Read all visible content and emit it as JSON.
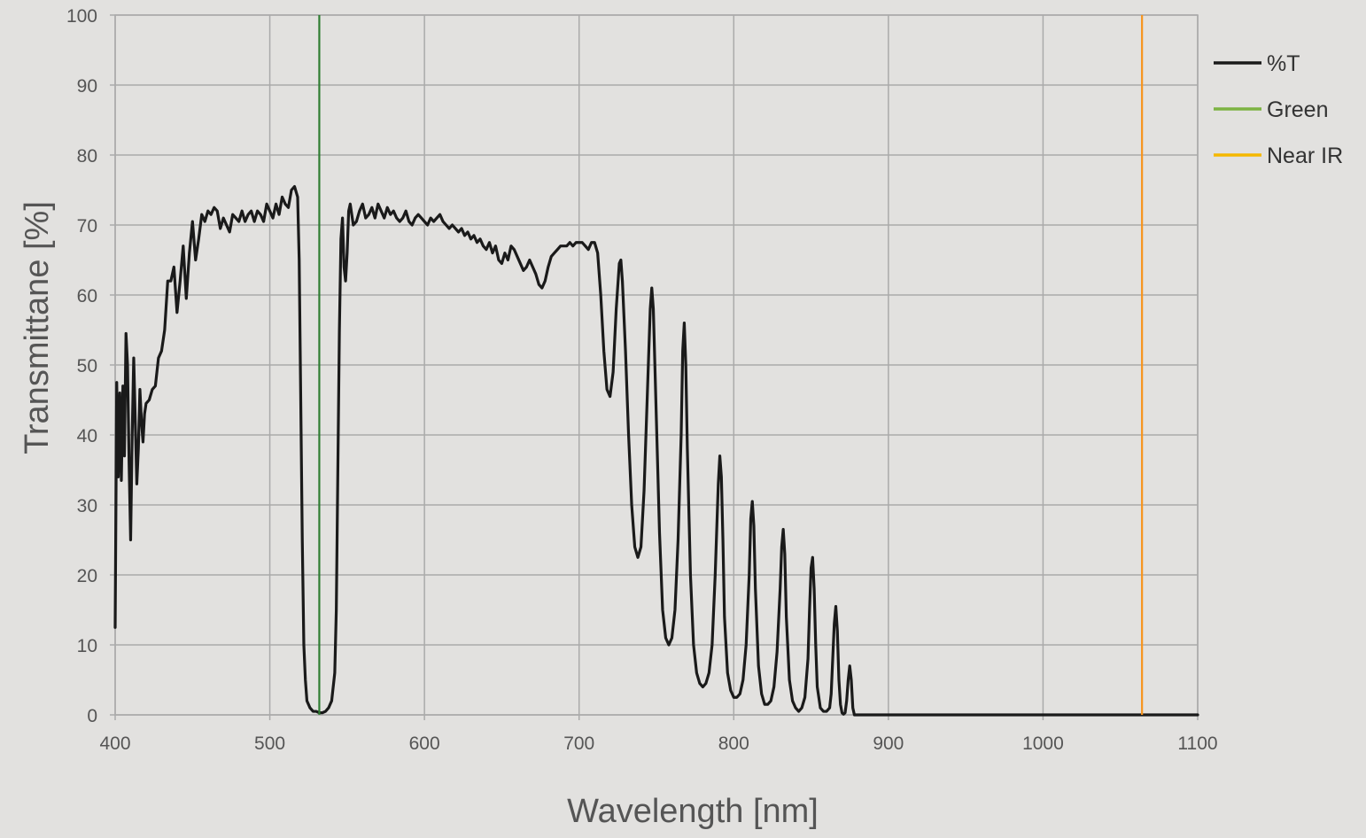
{
  "chart_data": {
    "type": "line",
    "xlabel": "Wavelength [nm]",
    "ylabel": "Transmittane [%]",
    "xlim": [
      400,
      1100
    ],
    "ylim": [
      0,
      100
    ],
    "xticks": [
      "400",
      "500",
      "600",
      "700",
      "800",
      "900",
      "1000",
      "1100"
    ],
    "yticks": [
      "0",
      "10",
      "20",
      "30",
      "40",
      "50",
      "60",
      "70",
      "80",
      "90",
      "100"
    ],
    "grid": true,
    "legend_position": "right",
    "legend": [
      "%T",
      "Green",
      "Near IR"
    ],
    "colors": {
      "transmittance": "#1a1a1a",
      "green_legend": "#7cb342",
      "green_line": "#2e7d32",
      "nir_legend": "#f5b800",
      "nir_line": "#f7941d",
      "grid": "#aaaaaa",
      "frame": "#aaaaaa",
      "background": "#e2e1df"
    },
    "series": [
      {
        "name": "%T",
        "points": [
          [
            400,
            12.5
          ],
          [
            401,
            47.5
          ],
          [
            402,
            34
          ],
          [
            403,
            46
          ],
          [
            404,
            33.5
          ],
          [
            405,
            47
          ],
          [
            406,
            37
          ],
          [
            407,
            54.5
          ],
          [
            408,
            50
          ],
          [
            409,
            36
          ],
          [
            410,
            25
          ],
          [
            411,
            40
          ],
          [
            412,
            51
          ],
          [
            413,
            42
          ],
          [
            414,
            33
          ],
          [
            415,
            38
          ],
          [
            416,
            46.5
          ],
          [
            417,
            42
          ],
          [
            418,
            39
          ],
          [
            419,
            43
          ],
          [
            420,
            44.5
          ],
          [
            422,
            45
          ],
          [
            424,
            46.5
          ],
          [
            426,
            47
          ],
          [
            428,
            51
          ],
          [
            430,
            52
          ],
          [
            432,
            55
          ],
          [
            434,
            62
          ],
          [
            436,
            62
          ],
          [
            438,
            64
          ],
          [
            440,
            57.5
          ],
          [
            442,
            62
          ],
          [
            444,
            67
          ],
          [
            446,
            59.5
          ],
          [
            448,
            66
          ],
          [
            450,
            70.5
          ],
          [
            452,
            65
          ],
          [
            454,
            68
          ],
          [
            456,
            71.5
          ],
          [
            458,
            70.5
          ],
          [
            460,
            72
          ],
          [
            462,
            71.5
          ],
          [
            464,
            72.5
          ],
          [
            466,
            72
          ],
          [
            468,
            69.5
          ],
          [
            470,
            71
          ],
          [
            472,
            70
          ],
          [
            474,
            69
          ],
          [
            476,
            71.5
          ],
          [
            478,
            71
          ],
          [
            480,
            70.5
          ],
          [
            482,
            72
          ],
          [
            484,
            70.5
          ],
          [
            486,
            71.5
          ],
          [
            488,
            72
          ],
          [
            490,
            70.5
          ],
          [
            492,
            72
          ],
          [
            494,
            71.5
          ],
          [
            496,
            70.5
          ],
          [
            498,
            73
          ],
          [
            500,
            72
          ],
          [
            502,
            71
          ],
          [
            504,
            73
          ],
          [
            506,
            71.5
          ],
          [
            508,
            74
          ],
          [
            510,
            73
          ],
          [
            512,
            72.5
          ],
          [
            514,
            75
          ],
          [
            516,
            75.5
          ],
          [
            518,
            74
          ],
          [
            519,
            65
          ],
          [
            520,
            45
          ],
          [
            521,
            25
          ],
          [
            522,
            10
          ],
          [
            523,
            5
          ],
          [
            524,
            2
          ],
          [
            526,
            1
          ],
          [
            528,
            0.5
          ],
          [
            530,
            0.5
          ],
          [
            532,
            0.3
          ],
          [
            534,
            0.3
          ],
          [
            536,
            0.5
          ],
          [
            538,
            1
          ],
          [
            540,
            2
          ],
          [
            542,
            6
          ],
          [
            543,
            15
          ],
          [
            544,
            35
          ],
          [
            545,
            55
          ],
          [
            546,
            68
          ],
          [
            547,
            71
          ],
          [
            548,
            64
          ],
          [
            549,
            62
          ],
          [
            550,
            66
          ],
          [
            551,
            72
          ],
          [
            552,
            73
          ],
          [
            554,
            70
          ],
          [
            556,
            70.5
          ],
          [
            558,
            72
          ],
          [
            560,
            73
          ],
          [
            562,
            71
          ],
          [
            564,
            71.5
          ],
          [
            566,
            72.5
          ],
          [
            568,
            71
          ],
          [
            570,
            73
          ],
          [
            572,
            72
          ],
          [
            574,
            71
          ],
          [
            576,
            72.5
          ],
          [
            578,
            71.5
          ],
          [
            580,
            72
          ],
          [
            582,
            71
          ],
          [
            584,
            70.5
          ],
          [
            586,
            71
          ],
          [
            588,
            72
          ],
          [
            590,
            70.5
          ],
          [
            592,
            70
          ],
          [
            594,
            71
          ],
          [
            596,
            71.5
          ],
          [
            598,
            71
          ],
          [
            600,
            70.5
          ],
          [
            602,
            70
          ],
          [
            604,
            71
          ],
          [
            606,
            70.5
          ],
          [
            608,
            71
          ],
          [
            610,
            71.5
          ],
          [
            612,
            70.5
          ],
          [
            614,
            70
          ],
          [
            616,
            69.5
          ],
          [
            618,
            70
          ],
          [
            620,
            69.5
          ],
          [
            622,
            69
          ],
          [
            624,
            69.5
          ],
          [
            626,
            68.5
          ],
          [
            628,
            69
          ],
          [
            630,
            68
          ],
          [
            632,
            68.5
          ],
          [
            634,
            67.5
          ],
          [
            636,
            68
          ],
          [
            638,
            67
          ],
          [
            640,
            66.5
          ],
          [
            642,
            67.5
          ],
          [
            644,
            66
          ],
          [
            646,
            67
          ],
          [
            648,
            65
          ],
          [
            650,
            64.5
          ],
          [
            652,
            66
          ],
          [
            654,
            65
          ],
          [
            656,
            67
          ],
          [
            658,
            66.5
          ],
          [
            660,
            65.5
          ],
          [
            662,
            64.5
          ],
          [
            664,
            63.5
          ],
          [
            666,
            64
          ],
          [
            668,
            65
          ],
          [
            670,
            64
          ],
          [
            672,
            63
          ],
          [
            674,
            61.5
          ],
          [
            676,
            61
          ],
          [
            678,
            62
          ],
          [
            680,
            64
          ],
          [
            682,
            65.5
          ],
          [
            684,
            66
          ],
          [
            686,
            66.5
          ],
          [
            688,
            67
          ],
          [
            690,
            67
          ],
          [
            692,
            67
          ],
          [
            694,
            67.5
          ],
          [
            696,
            67
          ],
          [
            698,
            67.5
          ],
          [
            700,
            67.5
          ],
          [
            702,
            67.5
          ],
          [
            704,
            67
          ],
          [
            706,
            66.5
          ],
          [
            708,
            67.5
          ],
          [
            710,
            67.5
          ],
          [
            712,
            66
          ],
          [
            714,
            60
          ],
          [
            716,
            52
          ],
          [
            718,
            46.5
          ],
          [
            720,
            45.5
          ],
          [
            722,
            49
          ],
          [
            724,
            58
          ],
          [
            726,
            64.5
          ],
          [
            727,
            65
          ],
          [
            728,
            62
          ],
          [
            730,
            52
          ],
          [
            732,
            40
          ],
          [
            734,
            30
          ],
          [
            736,
            24
          ],
          [
            738,
            22.5
          ],
          [
            740,
            24
          ],
          [
            742,
            32
          ],
          [
            744,
            45
          ],
          [
            746,
            58
          ],
          [
            747,
            61
          ],
          [
            748,
            58
          ],
          [
            750,
            42
          ],
          [
            752,
            26
          ],
          [
            754,
            15
          ],
          [
            756,
            11
          ],
          [
            758,
            10
          ],
          [
            760,
            11
          ],
          [
            762,
            15
          ],
          [
            764,
            25
          ],
          [
            766,
            40
          ],
          [
            767,
            52
          ],
          [
            768,
            56
          ],
          [
            769,
            50
          ],
          [
            770,
            38
          ],
          [
            772,
            20
          ],
          [
            774,
            10
          ],
          [
            776,
            6
          ],
          [
            778,
            4.5
          ],
          [
            780,
            4
          ],
          [
            782,
            4.5
          ],
          [
            784,
            6
          ],
          [
            786,
            10
          ],
          [
            788,
            20
          ],
          [
            790,
            33
          ],
          [
            791,
            37
          ],
          [
            792,
            34
          ],
          [
            793,
            25
          ],
          [
            794,
            14
          ],
          [
            796,
            6
          ],
          [
            798,
            3.5
          ],
          [
            800,
            2.5
          ],
          [
            802,
            2.5
          ],
          [
            804,
            3
          ],
          [
            806,
            5
          ],
          [
            808,
            10
          ],
          [
            810,
            20
          ],
          [
            811,
            28
          ],
          [
            812,
            30.5
          ],
          [
            813,
            27
          ],
          [
            814,
            18
          ],
          [
            816,
            7
          ],
          [
            818,
            3
          ],
          [
            820,
            1.5
          ],
          [
            822,
            1.5
          ],
          [
            824,
            2
          ],
          [
            826,
            4
          ],
          [
            828,
            9
          ],
          [
            830,
            18
          ],
          [
            831,
            24
          ],
          [
            832,
            26.5
          ],
          [
            833,
            23
          ],
          [
            834,
            14
          ],
          [
            836,
            5
          ],
          [
            838,
            2
          ],
          [
            840,
            1
          ],
          [
            842,
            0.5
          ],
          [
            844,
            1
          ],
          [
            846,
            2.5
          ],
          [
            848,
            8
          ],
          [
            849,
            15
          ],
          [
            850,
            21
          ],
          [
            851,
            22.5
          ],
          [
            852,
            18
          ],
          [
            853,
            10
          ],
          [
            854,
            4
          ],
          [
            856,
            1
          ],
          [
            858,
            0.5
          ],
          [
            860,
            0.5
          ],
          [
            862,
            1
          ],
          [
            863,
            3
          ],
          [
            864,
            8
          ],
          [
            865,
            13
          ],
          [
            866,
            15.5
          ],
          [
            867,
            12
          ],
          [
            868,
            5
          ],
          [
            869,
            1.5
          ],
          [
            870,
            0.3
          ],
          [
            871,
            0.1
          ],
          [
            872,
            0.3
          ],
          [
            873,
            2
          ],
          [
            874,
            5
          ],
          [
            875,
            7
          ],
          [
            876,
            5
          ],
          [
            877,
            1
          ],
          [
            878,
            0
          ],
          [
            880,
            0
          ],
          [
            900,
            0
          ],
          [
            950,
            0
          ],
          [
            1000,
            0
          ],
          [
            1050,
            0
          ],
          [
            1100,
            0
          ]
        ]
      },
      {
        "name": "Green",
        "x": 532
      },
      {
        "name": "Near IR",
        "x": 1064
      }
    ]
  }
}
